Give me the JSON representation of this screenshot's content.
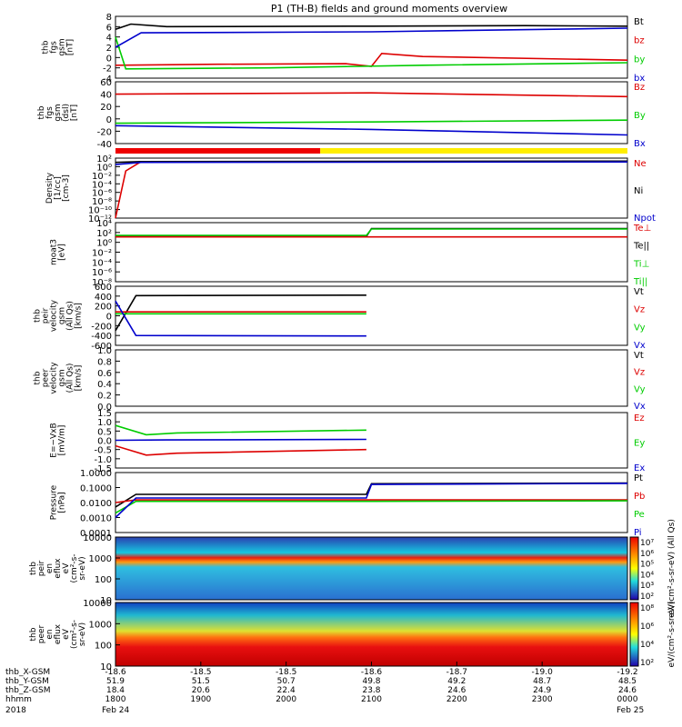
{
  "title": "P1 (TH-B) fields and ground moments overview",
  "colors": {
    "black": "#000000",
    "red": "#dd0000",
    "green": "#00cc00",
    "blue": "#0000cc"
  },
  "chart_data": {
    "type": "line",
    "x_axis": {
      "rows": [
        {
          "label": "thb_X-GSM",
          "values": [
            "-18.6",
            "-18.5",
            "-18.5",
            "-18.6",
            "-18.7",
            "-19.0",
            "-19.2"
          ]
        },
        {
          "label": "thb_Y-GSM",
          "values": [
            "51.9",
            "51.5",
            "50.7",
            "49.8",
            "49.2",
            "48.7",
            "48.5"
          ]
        },
        {
          "label": "thb_Z-GSM",
          "values": [
            "18.4",
            "20.6",
            "22.4",
            "23.8",
            "24.6",
            "24.9",
            "24.6"
          ]
        },
        {
          "label": "hhmm",
          "values": [
            "1800",
            "1900",
            "2000",
            "2100",
            "2200",
            "2300",
            "0000"
          ]
        }
      ],
      "date_left": "2018",
      "date_start": "Feb 24",
      "date_end": "Feb 25"
    },
    "panels": [
      {
        "id": "fgs-gsm",
        "ylabel": [
          "thb",
          "fgs",
          "gsm",
          "[nT]"
        ],
        "yticks": [
          "8",
          "6",
          "4",
          "2",
          "0",
          "-2",
          "-4"
        ],
        "legend": [
          {
            "t": "Bt",
            "c": "black"
          },
          {
            "t": "bz",
            "c": "red"
          },
          {
            "t": "by",
            "c": "green"
          },
          {
            "t": "bx",
            "c": "blue"
          }
        ]
      },
      {
        "id": "fgs-dsl",
        "ylabel": [
          "thb",
          "fgs",
          "gsm",
          "(dsl)",
          "[nT]"
        ],
        "yticks": [
          "60",
          "40",
          "20",
          "0",
          "-20",
          "-40"
        ],
        "legend": [
          {
            "t": "Bz",
            "c": "red"
          },
          {
            "t": "By",
            "c": "green"
          },
          {
            "t": "Bx",
            "c": "blue"
          }
        ]
      },
      {
        "id": "density",
        "ylabel": [
          "Density",
          "[1/cc]",
          "[cm-3]"
        ],
        "yticks": [
          "10²",
          "10⁰",
          "10⁻²",
          "10⁻⁴",
          "10⁻⁶",
          "10⁻⁸",
          "10⁻¹⁰",
          "10⁻¹²"
        ],
        "legend": [
          {
            "t": "Ne",
            "c": "red"
          },
          {
            "t": "Ni",
            "c": "black"
          },
          {
            "t": "Npot",
            "c": "blue"
          }
        ]
      },
      {
        "id": "temperature",
        "ylabel": [
          "moat3",
          "[eV]"
        ],
        "yticks": [
          "10⁴",
          "10²",
          "10⁰",
          "10⁻²",
          "10⁻⁴",
          "10⁻⁶",
          "10⁻⁸"
        ],
        "legend": [
          {
            "t": "Te⊥",
            "c": "red"
          },
          {
            "t": "Te||",
            "c": "black"
          },
          {
            "t": "Ti⊥",
            "c": "green"
          },
          {
            "t": "Ti||",
            "c": "green"
          }
        ]
      },
      {
        "id": "peir-velocity",
        "ylabel": [
          "thb",
          "peir",
          "velocity",
          "gsm",
          "(All Qs)",
          "[km/s]"
        ],
        "yticks": [
          "600",
          "400",
          "200",
          "0",
          "-200",
          "-400",
          "-600"
        ],
        "legend": [
          {
            "t": "Vt",
            "c": "black"
          },
          {
            "t": "Vz",
            "c": "red"
          },
          {
            "t": "Vy",
            "c": "green"
          },
          {
            "t": "Vx",
            "c": "blue"
          }
        ]
      },
      {
        "id": "peer-velocity",
        "ylabel": [
          "thb",
          "peer",
          "velocity",
          "gsm",
          "(All Qs)",
          "[km/s]"
        ],
        "yticks": [
          "1.0",
          "0.8",
          "0.6",
          "0.4",
          "0.2",
          "0.0"
        ],
        "legend": [
          {
            "t": "Vt",
            "c": "black"
          },
          {
            "t": "Vz",
            "c": "red"
          },
          {
            "t": "Vy",
            "c": "green"
          },
          {
            "t": "Vx",
            "c": "blue"
          }
        ]
      },
      {
        "id": "efield",
        "ylabel": [
          "E=−VxB",
          "[mV/m]"
        ],
        "yticks": [
          "1.5",
          "1.0",
          "0.5",
          "0.0",
          "-0.5",
          "-1.0",
          "-1.5"
        ],
        "legend": [
          {
            "t": "Ez",
            "c": "red"
          },
          {
            "t": "Ey",
            "c": "green"
          },
          {
            "t": "Ex",
            "c": "blue"
          }
        ]
      },
      {
        "id": "pressure",
        "ylabel": [
          "Pressure",
          "[nPa]"
        ],
        "yticks": [
          "1.0000",
          "0.1000",
          "0.0100",
          "0.0010",
          "0.0001"
        ],
        "legend": [
          {
            "t": "Pt",
            "c": "black"
          },
          {
            "t": "Pb",
            "c": "red"
          },
          {
            "t": "Pe",
            "c": "green"
          },
          {
            "t": "Pi",
            "c": "blue"
          }
        ]
      },
      {
        "id": "peir-spec",
        "ylabel": [
          "thb",
          "peir",
          "en",
          "eflux",
          "eV",
          "(cm²-s-",
          "sr-eV)"
        ],
        "yticks": [
          "10000",
          "1000",
          "100",
          "10"
        ],
        "colorbar": {
          "ticks": [
            "10⁷",
            "10⁶",
            "10⁵",
            "10⁴",
            "10³",
            "10²"
          ],
          "label": "eV/(cm²-s-sr-eV) (All Qs)"
        }
      },
      {
        "id": "peer-spec",
        "ylabel": [
          "thb",
          "peer",
          "en",
          "eflux",
          "eV",
          "(cm²-s-",
          "sr-eV)"
        ],
        "yticks": [
          "10000",
          "1000",
          "100",
          "10"
        ],
        "colorbar": {
          "ticks": [
            "10⁸",
            "10⁶",
            "10⁴",
            "10²"
          ],
          "label": "eV/(cm²-s-sr-eV)"
        }
      }
    ],
    "series": [
      {
        "panel": "fgs-gsm",
        "name": "Bt",
        "color": "black",
        "x": [
          0,
          0.03,
          0.1,
          0.5,
          0.8,
          1.0
        ],
        "y": [
          5.5,
          6.5,
          6.0,
          6.1,
          6.2,
          6.1
        ]
      },
      {
        "panel": "fgs-gsm",
        "name": "bz",
        "color": "red",
        "x": [
          0,
          0.2,
          0.45,
          0.5,
          0.52,
          0.6,
          1.0
        ],
        "y": [
          -1.5,
          -1.3,
          -1.2,
          -1.7,
          0.8,
          0.2,
          -0.5
        ]
      },
      {
        "panel": "fgs-gsm",
        "name": "by",
        "color": "green",
        "x": [
          0,
          0.02,
          0.3,
          0.6,
          1.0
        ],
        "y": [
          4,
          -2.2,
          -2.0,
          -1.5,
          -1.0
        ]
      },
      {
        "panel": "fgs-gsm",
        "name": "bx",
        "color": "blue",
        "x": [
          0,
          0.05,
          0.5,
          1.0
        ],
        "y": [
          2,
          4.8,
          5.0,
          5.7
        ]
      },
      {
        "panel": "fgs-dsl",
        "name": "Bz",
        "color": "red",
        "x": [
          0,
          0.5,
          1.0
        ],
        "y": [
          40,
          42,
          36
        ]
      },
      {
        "panel": "fgs-dsl",
        "name": "By",
        "color": "green",
        "x": [
          0,
          0.5,
          1.0
        ],
        "y": [
          -7,
          -5,
          -2
        ]
      },
      {
        "panel": "fgs-dsl",
        "name": "Bx",
        "color": "blue",
        "x": [
          0,
          0.5,
          1.0
        ],
        "y": [
          -11,
          -17,
          -26
        ]
      },
      {
        "panel": "density",
        "name": "Ne",
        "color": "red",
        "x": [
          0,
          0.02,
          0.05,
          1.0
        ],
        "y": [
          -12,
          -1,
          1.2,
          1.2
        ]
      },
      {
        "panel": "density",
        "name": "Ni",
        "color": "black",
        "x": [
          0,
          0.05,
          1.0
        ],
        "y": [
          1.0,
          1.2,
          1.3
        ]
      },
      {
        "panel": "density",
        "name": "Npot",
        "color": "blue",
        "x": [
          0,
          0.05,
          1.0
        ],
        "y": [
          0.5,
          1.0,
          1.1
        ]
      },
      {
        "panel": "temperature",
        "name": "Te||",
        "color": "black",
        "x": [
          0,
          0.49,
          0.5,
          1.0
        ],
        "y": [
          1.2,
          1.2,
          2.8,
          2.8
        ]
      },
      {
        "panel": "temperature",
        "name": "Ti||",
        "color": "green",
        "x": [
          0,
          0.49,
          0.5,
          1.0
        ],
        "y": [
          1.4,
          1.4,
          2.7,
          2.7
        ]
      },
      {
        "panel": "temperature",
        "name": "Te⊥",
        "color": "red",
        "x": [
          0,
          0.5,
          1.0
        ],
        "y": [
          1.1,
          1.1,
          1.1
        ]
      },
      {
        "panel": "peir-velocity",
        "name": "Vt",
        "color": "black",
        "x": [
          0,
          0.04,
          0.49
        ],
        "y": [
          -300,
          410,
          420
        ]
      },
      {
        "panel": "peir-velocity",
        "name": "Vz",
        "color": "red",
        "x": [
          0,
          0.49
        ],
        "y": [
          80,
          80
        ]
      },
      {
        "panel": "peir-velocity",
        "name": "Vy",
        "color": "green",
        "x": [
          0,
          0.49
        ],
        "y": [
          40,
          40
        ]
      },
      {
        "panel": "peir-velocity",
        "name": "Vx",
        "color": "blue",
        "x": [
          0,
          0.04,
          0.49
        ],
        "y": [
          300,
          -400,
          -410
        ]
      },
      {
        "panel": "efield",
        "name": "Ez",
        "color": "red",
        "x": [
          0,
          0.06,
          0.12,
          0.49
        ],
        "y": [
          -0.3,
          -0.8,
          -0.7,
          -0.5
        ]
      },
      {
        "panel": "efield",
        "name": "Ey",
        "color": "green",
        "x": [
          0,
          0.06,
          0.12,
          0.49
        ],
        "y": [
          0.8,
          0.3,
          0.4,
          0.55
        ]
      },
      {
        "panel": "efield",
        "name": "Ex",
        "color": "blue",
        "x": [
          0,
          0.1,
          0.49
        ],
        "y": [
          0.0,
          0.02,
          0.05
        ]
      },
      {
        "panel": "pressure",
        "name": "Pt",
        "color": "black",
        "x": [
          0,
          0.04,
          0.49,
          0.5,
          1.0
        ],
        "y": [
          0.005,
          0.035,
          0.035,
          0.18,
          0.2
        ]
      },
      {
        "panel": "pressure",
        "name": "Pb",
        "color": "red",
        "x": [
          0,
          0.04,
          1.0
        ],
        "y": [
          0.01,
          0.015,
          0.015
        ]
      },
      {
        "panel": "pressure",
        "name": "Pe",
        "color": "green",
        "x": [
          0,
          0.04,
          0.5,
          1.0
        ],
        "y": [
          0.002,
          0.012,
          0.012,
          0.013
        ]
      },
      {
        "panel": "pressure",
        "name": "Pi",
        "color": "blue",
        "x": [
          0,
          0.04,
          0.49,
          0.5,
          1.0
        ],
        "y": [
          0.001,
          0.02,
          0.02,
          0.16,
          0.19
        ]
      }
    ]
  }
}
